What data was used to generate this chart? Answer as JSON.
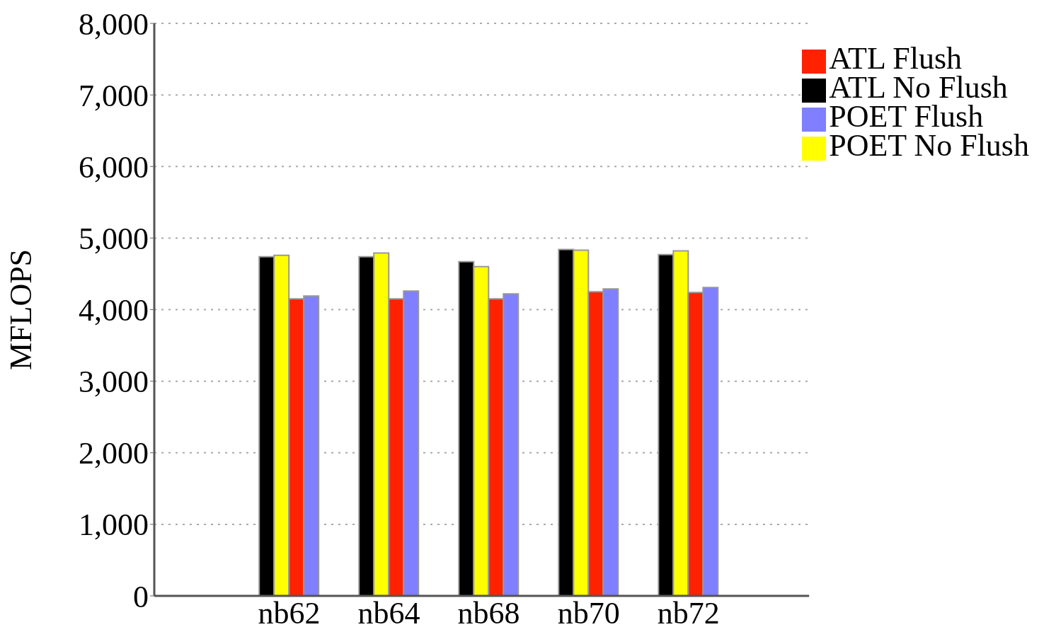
{
  "chart_data": {
    "type": "bar",
    "ylabel": "MFLOPS",
    "categories": [
      "nb62",
      "nb64",
      "nb68",
      "nb70",
      "nb72"
    ],
    "series": [
      {
        "name": "ATL No Flush",
        "color": "#000000",
        "values": [
          4740,
          4740,
          4670,
          4840,
          4770
        ]
      },
      {
        "name": "POET No Flush",
        "color": "#ffff00",
        "values": [
          4760,
          4790,
          4600,
          4830,
          4820
        ]
      },
      {
        "name": "ATL Flush",
        "color": "#ff2200",
        "values": [
          4150,
          4150,
          4150,
          4250,
          4240
        ]
      },
      {
        "name": "POET Flush",
        "color": "#7f7fff",
        "values": [
          4190,
          4260,
          4220,
          4290,
          4310
        ]
      }
    ],
    "ylim": [
      0,
      8000
    ],
    "yticks": [
      {
        "value": 0,
        "label": "0"
      },
      {
        "value": 1000,
        "label": "1,000"
      },
      {
        "value": 2000,
        "label": "2,000"
      },
      {
        "value": 3000,
        "label": "3,000"
      },
      {
        "value": 4000,
        "label": "4,000"
      },
      {
        "value": 5000,
        "label": "5,000"
      },
      {
        "value": 6000,
        "label": "6,000"
      },
      {
        "value": 7000,
        "label": "7,000"
      },
      {
        "value": 8000,
        "label": "8,000"
      }
    ],
    "grid": "y",
    "legend": "top right"
  }
}
